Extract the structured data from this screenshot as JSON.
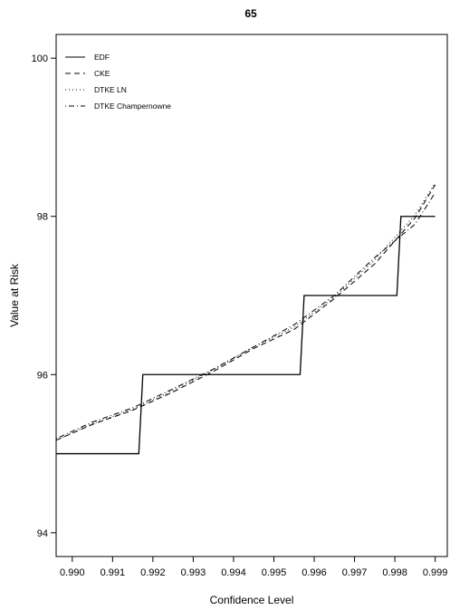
{
  "chart_data": {
    "type": "line",
    "title": "65",
    "xlabel": "Confidence Level",
    "ylabel": "Value at Risk",
    "xlim": [
      0.9896,
      0.9993
    ],
    "ylim": [
      93.7,
      100.3
    ],
    "xticks": [
      0.99,
      0.991,
      0.992,
      0.993,
      0.994,
      0.995,
      0.996,
      0.997,
      0.998,
      0.999
    ],
    "xtick_labels": [
      "0.990",
      "0.991",
      "0.992",
      "0.993",
      "0.994",
      "0.995",
      "0.996",
      "0.997",
      "0.998",
      "0.999"
    ],
    "yticks": [
      94,
      96,
      98,
      100
    ],
    "ytick_labels": [
      "94",
      "96",
      "98",
      "100"
    ],
    "grid": false,
    "legend_position": "top-left",
    "series": [
      {
        "name": "EDF",
        "style": "solid",
        "x": [
          0.9896,
          0.99165,
          0.99175,
          0.99565,
          0.99575,
          0.99805,
          0.99815,
          0.999
        ],
        "y": [
          95,
          95,
          96,
          96,
          97,
          97,
          98,
          98
        ]
      },
      {
        "name": "CKE",
        "style": "dashed",
        "x": [
          0.9896,
          0.9905,
          0.9915,
          0.9925,
          0.9935,
          0.9945,
          0.9955,
          0.9965,
          0.9975,
          0.9985,
          0.999
        ],
        "y": [
          95.17,
          95.37,
          95.55,
          95.78,
          96.04,
          96.33,
          96.57,
          96.96,
          97.4,
          97.98,
          98.4
        ]
      },
      {
        "name": "DTKE LN",
        "style": "dotted",
        "x": [
          0.9896,
          0.9905,
          0.9915,
          0.9925,
          0.9935,
          0.9945,
          0.9955,
          0.9965,
          0.9975,
          0.9985,
          0.999
        ],
        "y": [
          95.17,
          95.38,
          95.56,
          95.8,
          96.06,
          96.35,
          96.6,
          96.98,
          97.45,
          98.02,
          98.42
        ]
      },
      {
        "name": "DTKE Champernowne",
        "style": "dotdash",
        "x": [
          0.9896,
          0.9905,
          0.9915,
          0.9925,
          0.9935,
          0.9945,
          0.9955,
          0.9965,
          0.9975,
          0.9985,
          0.999
        ],
        "y": [
          95.19,
          95.4,
          95.58,
          95.82,
          96.07,
          96.35,
          96.63,
          97.0,
          97.48,
          97.9,
          98.3
        ]
      }
    ]
  }
}
